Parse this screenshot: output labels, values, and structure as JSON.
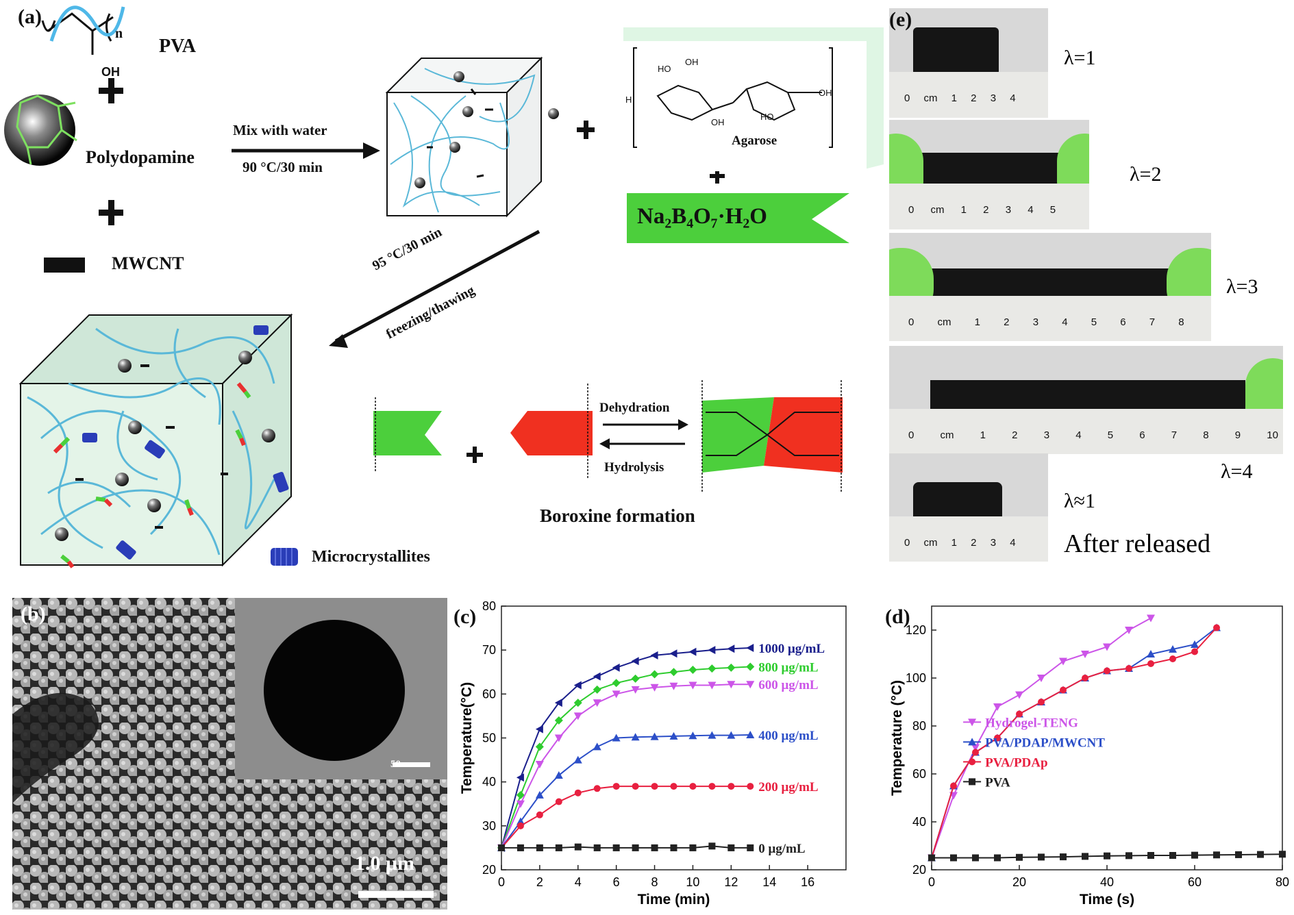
{
  "panel_labels": {
    "a": "(a)",
    "b": "(b)",
    "c": "(c)",
    "d": "(d)",
    "e": "(e)"
  },
  "scheme": {
    "pva": "PVA",
    "n": "n",
    "oh": "OH",
    "polydopamine": "Polydopamine",
    "mwcnt": "MWCNT",
    "mix_line1": "Mix with water",
    "mix_line2": "90 °C/30 min",
    "agarose": "Agarose",
    "borax": "Na₂B₄O₇·H₂O",
    "step2_line1": "95 °C/30 min",
    "step2_line2": "freezing/thawing",
    "dehydration": "Dehydration",
    "hydrolysis": "Hydrolysis",
    "boroxine": "Boroxine formation",
    "microcrystallites": "Microcrystallites",
    "plus": "+"
  },
  "sem": {
    "scale_main": "1.0 μm",
    "scale_inset": "50 nm"
  },
  "stretch": {
    "rows": [
      {
        "label": "λ=1",
        "ruler": "0 cm 1 2 3 4"
      },
      {
        "label": "λ=2",
        "ruler": "0 cm 1 2 3 4 5"
      },
      {
        "label": "λ=3",
        "ruler": "0 cm 1 2 3 4 5 6 7 8"
      },
      {
        "label": "λ=4",
        "ruler": "0 cm 1 2 3 4 5 6 7 8 9 10"
      },
      {
        "label": "λ≈1",
        "ruler": "0 cm 1 2 3 4"
      }
    ],
    "after": "After released"
  },
  "chart_data": [
    {
      "type": "line",
      "xlabel": "Time (min)",
      "ylabel": "Temperature(°C)",
      "xlim": [
        0,
        18
      ],
      "ylim": [
        20,
        80
      ],
      "xticks": [
        0,
        2,
        4,
        6,
        8,
        10,
        12,
        14,
        16
      ],
      "yticks": [
        20,
        30,
        40,
        50,
        60,
        70,
        80
      ],
      "x": [
        0,
        1,
        2,
        3,
        4,
        5,
        6,
        7,
        8,
        9,
        10,
        11,
        12,
        13
      ],
      "series": [
        {
          "name": "1000 μg/mL",
          "color": "#1a1f8c",
          "marker": "tri-left",
          "values": [
            25,
            41,
            52,
            58,
            62,
            64,
            66,
            67.5,
            68.8,
            69.2,
            69.6,
            70,
            70.3,
            70.5
          ]
        },
        {
          "name": "800 μg/mL",
          "color": "#2ecc2e",
          "marker": "diamond",
          "values": [
            25,
            37,
            48,
            54,
            58,
            61,
            62.5,
            63.5,
            64.5,
            65,
            65.5,
            65.8,
            66,
            66.2
          ]
        },
        {
          "name": "600 μg/mL",
          "color": "#cc55e8",
          "marker": "tri-down",
          "values": [
            25,
            35,
            44,
            50,
            55,
            58,
            60,
            61,
            61.5,
            61.8,
            62,
            62,
            62.2,
            62.2
          ]
        },
        {
          "name": "400 μg/mL",
          "color": "#2c4fc8",
          "marker": "tri-up",
          "values": [
            25,
            31,
            37,
            41.5,
            45,
            48,
            50,
            50.2,
            50.3,
            50.4,
            50.5,
            50.6,
            50.6,
            50.7
          ]
        },
        {
          "name": "200 μg/mL",
          "color": "#e82040",
          "marker": "circle",
          "values": [
            25,
            30,
            32.5,
            35.5,
            37.5,
            38.5,
            39,
            39,
            39,
            39,
            39,
            39,
            39,
            39
          ]
        },
        {
          "name": "0 μg/mL",
          "color": "#222222",
          "marker": "square",
          "values": [
            25,
            25,
            25,
            25,
            25.2,
            25,
            25,
            25,
            25,
            25,
            25,
            25.4,
            25,
            25
          ]
        }
      ]
    },
    {
      "type": "line",
      "xlabel": "Time (s)",
      "ylabel": "Temperature (°C)",
      "xlim": [
        0,
        80
      ],
      "ylim": [
        20,
        130
      ],
      "xticks": [
        0,
        20,
        40,
        60,
        80
      ],
      "yticks": [
        20,
        40,
        60,
        80,
        100,
        120
      ],
      "legend_position": "center",
      "series": [
        {
          "name": "Hydrogel-TENG",
          "color": "#cc55e8",
          "marker": "tri-down",
          "x": [
            0,
            5,
            10,
            15,
            20,
            25,
            30,
            35,
            40,
            45,
            50
          ],
          "values": [
            25,
            51,
            71,
            88,
            93,
            100,
            107,
            110,
            113,
            120,
            125
          ]
        },
        {
          "name": "PVA/PDAP/MWCNT",
          "color": "#2c4fc8",
          "marker": "tri-up",
          "x": [
            0,
            5,
            10,
            15,
            20,
            25,
            30,
            35,
            40,
            45,
            50,
            55,
            60,
            65
          ],
          "values": [
            25,
            55,
            69,
            75,
            85,
            90,
            95,
            100,
            103,
            104,
            110,
            112,
            114,
            121
          ]
        },
        {
          "name": "PVA/PDAp",
          "color": "#e82040",
          "marker": "circle",
          "x": [
            0,
            5,
            10,
            15,
            20,
            25,
            30,
            35,
            40,
            45,
            50,
            55,
            60,
            65
          ],
          "values": [
            25,
            55,
            69,
            75,
            85,
            90,
            95,
            100,
            103,
            104,
            106,
            108,
            111,
            121
          ]
        },
        {
          "name": "PVA",
          "color": "#222222",
          "marker": "square",
          "x": [
            0,
            5,
            10,
            15,
            20,
            25,
            30,
            35,
            40,
            45,
            50,
            55,
            60,
            65,
            70,
            75,
            80
          ],
          "values": [
            25,
            25,
            25,
            25,
            25.2,
            25.3,
            25.4,
            25.6,
            25.8,
            25.9,
            26,
            26,
            26.1,
            26.2,
            26.3,
            26.4,
            26.5
          ]
        }
      ]
    }
  ]
}
